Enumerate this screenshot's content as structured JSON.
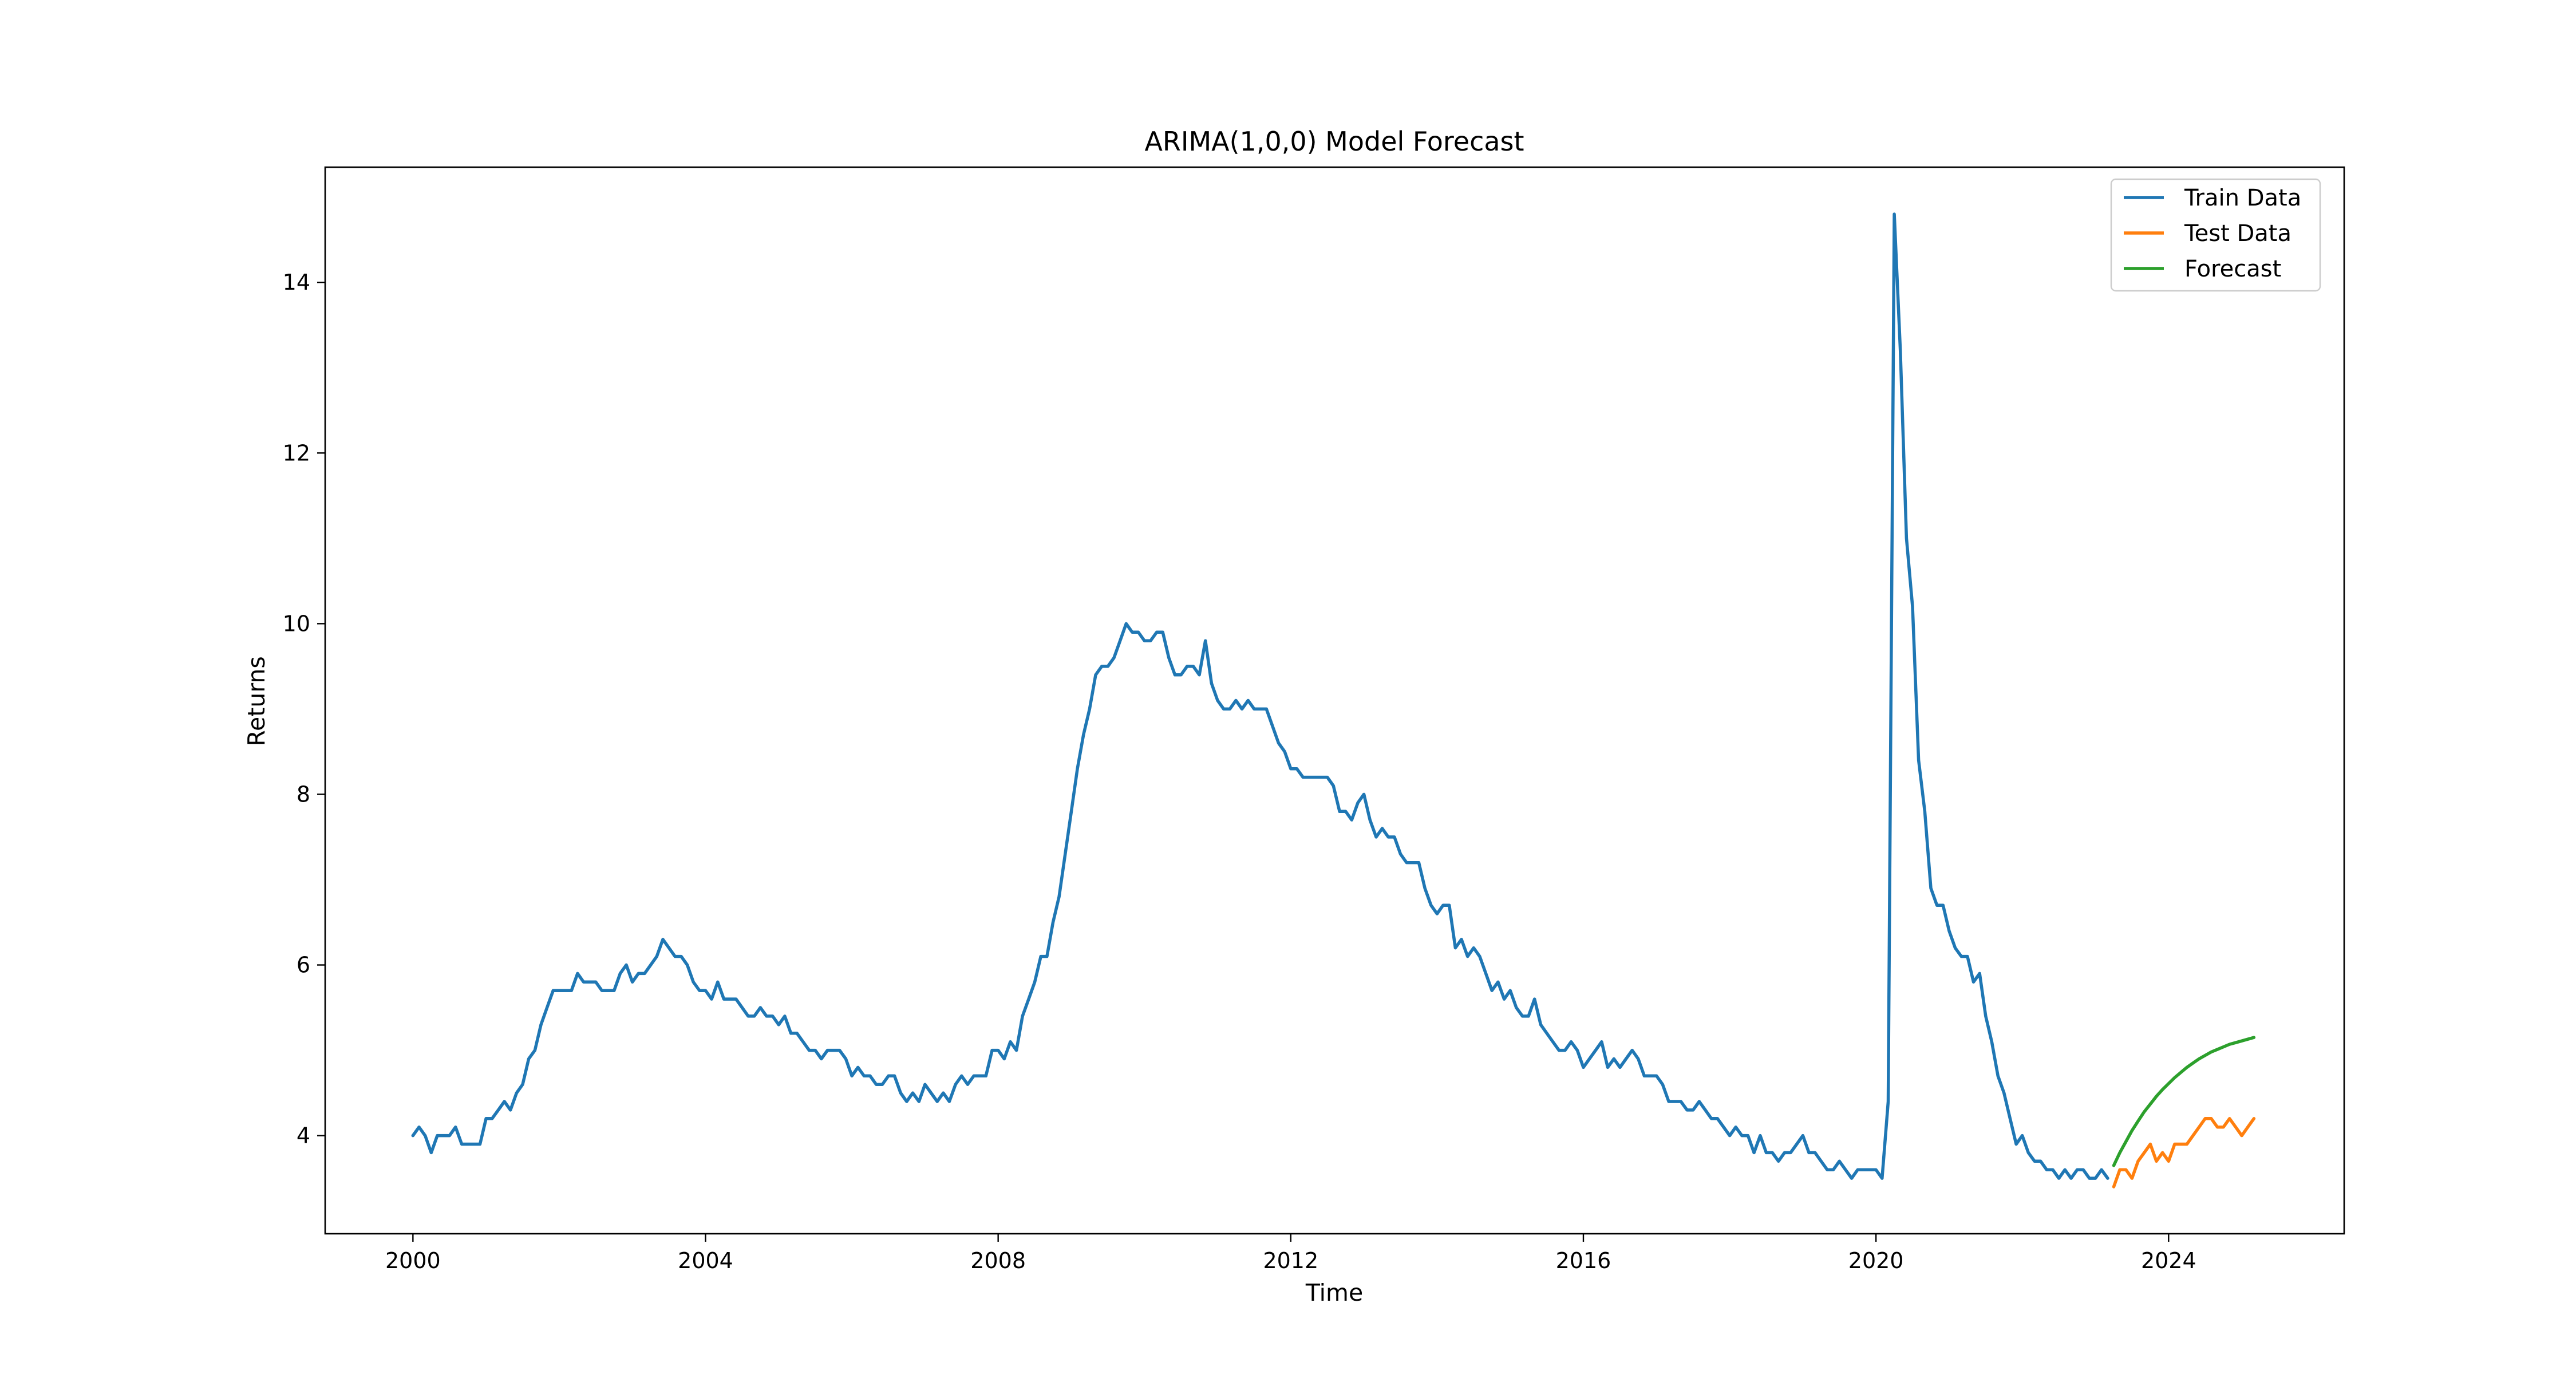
{
  "chart_data": {
    "type": "line",
    "title": "ARIMA(1,0,0) Model Forecast",
    "xlabel": "Time",
    "ylabel": "Returns",
    "xlim": [
      1998.8,
      2026.4
    ],
    "ylim": [
      2.85,
      15.35
    ],
    "xticks": [
      2000,
      2004,
      2008,
      2012,
      2016,
      2020,
      2024
    ],
    "xtick_labels": [
      "2000",
      "2004",
      "2008",
      "2012",
      "2016",
      "2020",
      "2024"
    ],
    "yticks": [
      4,
      6,
      8,
      10,
      12,
      14
    ],
    "ytick_labels": [
      "4",
      "6",
      "8",
      "10",
      "12",
      "14"
    ],
    "grid": false,
    "legend_position": "top-right",
    "series": [
      {
        "name": "Train Data",
        "color": "#1f77b4",
        "x": [
          2000.0,
          2000.083,
          2000.167,
          2000.25,
          2000.333,
          2000.417,
          2000.5,
          2000.583,
          2000.667,
          2000.75,
          2000.833,
          2000.917,
          2001.0,
          2001.083,
          2001.167,
          2001.25,
          2001.333,
          2001.417,
          2001.5,
          2001.583,
          2001.667,
          2001.75,
          2001.833,
          2001.917,
          2002.0,
          2002.083,
          2002.167,
          2002.25,
          2002.333,
          2002.417,
          2002.5,
          2002.583,
          2002.667,
          2002.75,
          2002.833,
          2002.917,
          2003.0,
          2003.083,
          2003.167,
          2003.25,
          2003.333,
          2003.417,
          2003.5,
          2003.583,
          2003.667,
          2003.75,
          2003.833,
          2003.917,
          2004.0,
          2004.083,
          2004.167,
          2004.25,
          2004.333,
          2004.417,
          2004.5,
          2004.583,
          2004.667,
          2004.75,
          2004.833,
          2004.917,
          2005.0,
          2005.083,
          2005.167,
          2005.25,
          2005.333,
          2005.417,
          2005.5,
          2005.583,
          2005.667,
          2005.75,
          2005.833,
          2005.917,
          2006.0,
          2006.083,
          2006.167,
          2006.25,
          2006.333,
          2006.417,
          2006.5,
          2006.583,
          2006.667,
          2006.75,
          2006.833,
          2006.917,
          2007.0,
          2007.083,
          2007.167,
          2007.25,
          2007.333,
          2007.417,
          2007.5,
          2007.583,
          2007.667,
          2007.75,
          2007.833,
          2007.917,
          2008.0,
          2008.083,
          2008.167,
          2008.25,
          2008.333,
          2008.417,
          2008.5,
          2008.583,
          2008.667,
          2008.75,
          2008.833,
          2008.917,
          2009.0,
          2009.083,
          2009.167,
          2009.25,
          2009.333,
          2009.417,
          2009.5,
          2009.583,
          2009.667,
          2009.75,
          2009.833,
          2009.917,
          2010.0,
          2010.083,
          2010.167,
          2010.25,
          2010.333,
          2010.417,
          2010.5,
          2010.583,
          2010.667,
          2010.75,
          2010.833,
          2010.917,
          2011.0,
          2011.083,
          2011.167,
          2011.25,
          2011.333,
          2011.417,
          2011.5,
          2011.583,
          2011.667,
          2011.75,
          2011.833,
          2011.917,
          2012.0,
          2012.083,
          2012.167,
          2012.25,
          2012.333,
          2012.417,
          2012.5,
          2012.583,
          2012.667,
          2012.75,
          2012.833,
          2012.917,
          2013.0,
          2013.083,
          2013.167,
          2013.25,
          2013.333,
          2013.417,
          2013.5,
          2013.583,
          2013.667,
          2013.75,
          2013.833,
          2013.917,
          2014.0,
          2014.083,
          2014.167,
          2014.25,
          2014.333,
          2014.417,
          2014.5,
          2014.583,
          2014.667,
          2014.75,
          2014.833,
          2014.917,
          2015.0,
          2015.083,
          2015.167,
          2015.25,
          2015.333,
          2015.417,
          2015.5,
          2015.583,
          2015.667,
          2015.75,
          2015.833,
          2015.917,
          2016.0,
          2016.083,
          2016.167,
          2016.25,
          2016.333,
          2016.417,
          2016.5,
          2016.583,
          2016.667,
          2016.75,
          2016.833,
          2016.917,
          2017.0,
          2017.083,
          2017.167,
          2017.25,
          2017.333,
          2017.417,
          2017.5,
          2017.583,
          2017.667,
          2017.75,
          2017.833,
          2017.917,
          2018.0,
          2018.083,
          2018.167,
          2018.25,
          2018.333,
          2018.417,
          2018.5,
          2018.583,
          2018.667,
          2018.75,
          2018.833,
          2018.917,
          2019.0,
          2019.083,
          2019.167,
          2019.25,
          2019.333,
          2019.417,
          2019.5,
          2019.583,
          2019.667,
          2019.75,
          2019.833,
          2019.917,
          2020.0,
          2020.083,
          2020.167,
          2020.25,
          2020.333,
          2020.417,
          2020.5,
          2020.583,
          2020.667,
          2020.75,
          2020.833,
          2020.917,
          2021.0,
          2021.083,
          2021.167,
          2021.25,
          2021.333,
          2021.417,
          2021.5,
          2021.583,
          2021.667,
          2021.75,
          2021.833,
          2021.917,
          2022.0,
          2022.083,
          2022.167,
          2022.25,
          2022.333,
          2022.417,
          2022.5,
          2022.583,
          2022.667,
          2022.75,
          2022.833,
          2022.917,
          2023.0,
          2023.083,
          2023.167
        ],
        "y": [
          4.0,
          4.1,
          4.0,
          3.8,
          4.0,
          4.0,
          4.0,
          4.1,
          3.9,
          3.9,
          3.9,
          3.9,
          4.2,
          4.2,
          4.3,
          4.4,
          4.3,
          4.5,
          4.6,
          4.9,
          5.0,
          5.3,
          5.5,
          5.7,
          5.7,
          5.7,
          5.7,
          5.9,
          5.8,
          5.8,
          5.8,
          5.7,
          5.7,
          5.7,
          5.9,
          6.0,
          5.8,
          5.9,
          5.9,
          6.0,
          6.1,
          6.3,
          6.2,
          6.1,
          6.1,
          6.0,
          5.8,
          5.7,
          5.7,
          5.6,
          5.8,
          5.6,
          5.6,
          5.6,
          5.5,
          5.4,
          5.4,
          5.5,
          5.4,
          5.4,
          5.3,
          5.4,
          5.2,
          5.2,
          5.1,
          5.0,
          5.0,
          4.9,
          5.0,
          5.0,
          5.0,
          4.9,
          4.7,
          4.8,
          4.7,
          4.7,
          4.6,
          4.6,
          4.7,
          4.7,
          4.5,
          4.4,
          4.5,
          4.4,
          4.6,
          4.5,
          4.4,
          4.5,
          4.4,
          4.6,
          4.7,
          4.6,
          4.7,
          4.7,
          4.7,
          5.0,
          5.0,
          4.9,
          5.1,
          5.0,
          5.4,
          5.6,
          5.8,
          6.1,
          6.1,
          6.5,
          6.8,
          7.3,
          7.8,
          8.3,
          8.7,
          9.0,
          9.4,
          9.5,
          9.5,
          9.6,
          9.8,
          10.0,
          9.9,
          9.9,
          9.8,
          9.8,
          9.9,
          9.9,
          9.6,
          9.4,
          9.4,
          9.5,
          9.5,
          9.4,
          9.8,
          9.3,
          9.1,
          9.0,
          9.0,
          9.1,
          9.0,
          9.1,
          9.0,
          9.0,
          9.0,
          8.8,
          8.6,
          8.5,
          8.3,
          8.3,
          8.2,
          8.2,
          8.2,
          8.2,
          8.2,
          8.1,
          7.8,
          7.8,
          7.7,
          7.9,
          8.0,
          7.7,
          7.5,
          7.6,
          7.5,
          7.5,
          7.3,
          7.2,
          7.2,
          7.2,
          6.9,
          6.7,
          6.6,
          6.7,
          6.7,
          6.2,
          6.3,
          6.1,
          6.2,
          6.1,
          5.9,
          5.7,
          5.8,
          5.6,
          5.7,
          5.5,
          5.4,
          5.4,
          5.6,
          5.3,
          5.2,
          5.1,
          5.0,
          5.0,
          5.1,
          5.0,
          4.8,
          4.9,
          5.0,
          5.1,
          4.8,
          4.9,
          4.8,
          4.9,
          5.0,
          4.9,
          4.7,
          4.7,
          4.7,
          4.6,
          4.4,
          4.4,
          4.4,
          4.3,
          4.3,
          4.4,
          4.3,
          4.2,
          4.2,
          4.1,
          4.0,
          4.1,
          4.0,
          4.0,
          3.8,
          4.0,
          3.8,
          3.8,
          3.7,
          3.8,
          3.8,
          3.9,
          4.0,
          3.8,
          3.8,
          3.7,
          3.6,
          3.6,
          3.7,
          3.6,
          3.5,
          3.6,
          3.6,
          3.6,
          3.6,
          3.5,
          4.4,
          14.8,
          13.2,
          11.0,
          10.2,
          8.4,
          7.8,
          6.9,
          6.7,
          6.7,
          6.4,
          6.2,
          6.1,
          6.1,
          5.8,
          5.9,
          5.4,
          5.1,
          4.7,
          4.5,
          4.2,
          3.9,
          4.0,
          3.8,
          3.7,
          3.7,
          3.6,
          3.6,
          3.5,
          3.6,
          3.5,
          3.6,
          3.6,
          3.5,
          3.5,
          3.6,
          3.5
        ]
      },
      {
        "name": "Test Data",
        "color": "#ff7f0e",
        "x": [
          2023.25,
          2023.333,
          2023.417,
          2023.5,
          2023.583,
          2023.667,
          2023.75,
          2023.833,
          2023.917,
          2024.0,
          2024.083,
          2024.167,
          2024.25,
          2024.333,
          2024.417,
          2024.5,
          2024.583,
          2024.667,
          2024.75,
          2024.833,
          2024.917,
          2025.0,
          2025.083,
          2025.167
        ],
        "y": [
          3.4,
          3.6,
          3.6,
          3.5,
          3.7,
          3.8,
          3.9,
          3.7,
          3.8,
          3.7,
          3.9,
          3.9,
          3.9,
          4.0,
          4.1,
          4.2,
          4.2,
          4.1,
          4.1,
          4.2,
          4.1,
          4.0,
          4.1,
          4.2
        ]
      },
      {
        "name": "Forecast",
        "color": "#2ca02c",
        "x": [
          2023.25,
          2023.333,
          2023.417,
          2023.5,
          2023.583,
          2023.667,
          2023.75,
          2023.833,
          2023.917,
          2024.0,
          2024.083,
          2024.167,
          2024.25,
          2024.333,
          2024.417,
          2024.5,
          2024.583,
          2024.667,
          2024.75,
          2024.833,
          2024.917,
          2025.0,
          2025.083,
          2025.167
        ],
        "y": [
          3.65,
          3.8,
          3.93,
          4.06,
          4.17,
          4.28,
          4.37,
          4.46,
          4.54,
          4.61,
          4.68,
          4.74,
          4.8,
          4.85,
          4.9,
          4.94,
          4.98,
          5.01,
          5.04,
          5.07,
          5.09,
          5.11,
          5.13,
          5.15
        ]
      }
    ]
  }
}
